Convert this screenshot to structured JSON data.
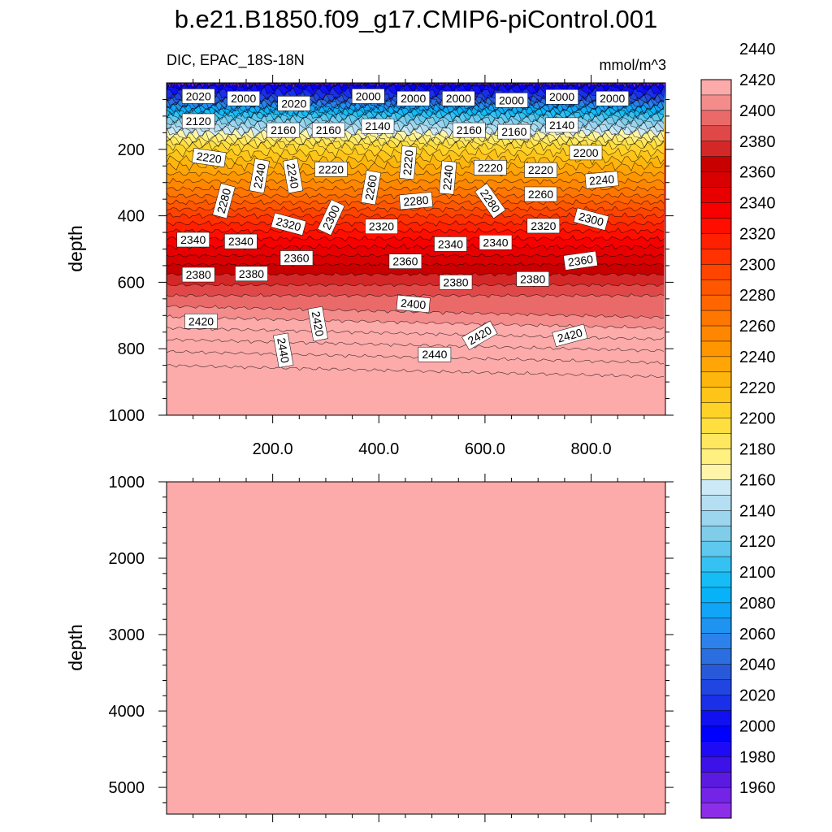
{
  "title": "b.e21.B1850.f09_g17.CMIP6-piControl.001",
  "subtitle_left": "DIC, EPAC_18S-18N",
  "subtitle_right": "mmol/m^3",
  "chart_data": {
    "type": "heatmap",
    "upper_panel": {
      "ylabel": "depth",
      "ylim": [
        1000,
        0
      ],
      "yticks": [
        200,
        400,
        600,
        800,
        1000
      ],
      "xlim": [
        0,
        940
      ],
      "xticks": [
        200,
        400,
        600,
        800
      ],
      "xtick_labels": [
        "200.0",
        "400.0",
        "600.0",
        "800.0"
      ],
      "surface_value": 1990,
      "depth_profile": [
        {
          "depth": 0,
          "value": 1990
        },
        {
          "depth": 40,
          "value": 2020
        },
        {
          "depth": 100,
          "value": 2110
        },
        {
          "depth": 150,
          "value": 2160
        },
        {
          "depth": 190,
          "value": 2200
        },
        {
          "depth": 250,
          "value": 2230
        },
        {
          "depth": 330,
          "value": 2265
        },
        {
          "depth": 400,
          "value": 2300
        },
        {
          "depth": 480,
          "value": 2335
        },
        {
          "depth": 560,
          "value": 2365
        },
        {
          "depth": 640,
          "value": 2390
        },
        {
          "depth": 720,
          "value": 2415
        },
        {
          "depth": 800,
          "value": 2438
        },
        {
          "depth": 850,
          "value": 2450
        },
        {
          "depth": 1000,
          "value": 2452
        }
      ],
      "contour_labels": [
        {
          "text": "2020",
          "x": 60,
          "depth": 40,
          "angle": 0
        },
        {
          "text": "2000",
          "x": 145,
          "depth": 47,
          "angle": 0
        },
        {
          "text": "2020",
          "x": 240,
          "depth": 62,
          "angle": 0
        },
        {
          "text": "2000",
          "x": 380,
          "depth": 40,
          "angle": 0
        },
        {
          "text": "2000",
          "x": 465,
          "depth": 47,
          "angle": 0
        },
        {
          "text": "2000",
          "x": 550,
          "depth": 47,
          "angle": 0
        },
        {
          "text": "2000",
          "x": 650,
          "depth": 52,
          "angle": 0
        },
        {
          "text": "2000",
          "x": 745,
          "depth": 42,
          "angle": 0
        },
        {
          "text": "2000",
          "x": 840,
          "depth": 47,
          "angle": 0
        },
        {
          "text": "2120",
          "x": 60,
          "depth": 115,
          "angle": 0
        },
        {
          "text": "2160",
          "x": 220,
          "depth": 142,
          "angle": 0
        },
        {
          "text": "2160",
          "x": 305,
          "depth": 142,
          "angle": 0
        },
        {
          "text": "2140",
          "x": 398,
          "depth": 130,
          "angle": 0
        },
        {
          "text": "2160",
          "x": 570,
          "depth": 142,
          "angle": 0
        },
        {
          "text": "2160",
          "x": 655,
          "depth": 147,
          "angle": 0
        },
        {
          "text": "2140",
          "x": 745,
          "depth": 127,
          "angle": 0
        },
        {
          "text": "2220",
          "x": 80,
          "depth": 225,
          "angle": 8
        },
        {
          "text": "2200",
          "x": 790,
          "depth": 210,
          "angle": 0
        },
        {
          "text": "2240",
          "x": 175,
          "depth": 280,
          "angle": -80
        },
        {
          "text": "2240",
          "x": 238,
          "depth": 280,
          "angle": 80
        },
        {
          "text": "2220",
          "x": 310,
          "depth": 260,
          "angle": 0
        },
        {
          "text": "2260",
          "x": 385,
          "depth": 315,
          "angle": -80
        },
        {
          "text": "2220",
          "x": 455,
          "depth": 240,
          "angle": -85
        },
        {
          "text": "2240",
          "x": 530,
          "depth": 285,
          "angle": -85
        },
        {
          "text": "2220",
          "x": 610,
          "depth": 255,
          "angle": 0
        },
        {
          "text": "2220",
          "x": 705,
          "depth": 262,
          "angle": 0
        },
        {
          "text": "2280",
          "x": 108,
          "depth": 355,
          "angle": -75
        },
        {
          "text": "2280",
          "x": 470,
          "depth": 355,
          "angle": -5
        },
        {
          "text": "2280",
          "x": 610,
          "depth": 355,
          "angle": 55
        },
        {
          "text": "2260",
          "x": 705,
          "depth": 335,
          "angle": 0
        },
        {
          "text": "2240",
          "x": 820,
          "depth": 292,
          "angle": -5
        },
        {
          "text": "2320",
          "x": 230,
          "depth": 425,
          "angle": 15
        },
        {
          "text": "2300",
          "x": 310,
          "depth": 405,
          "angle": -65
        },
        {
          "text": "2320",
          "x": 405,
          "depth": 432,
          "angle": 0
        },
        {
          "text": "2300",
          "x": 800,
          "depth": 410,
          "angle": 15
        },
        {
          "text": "2320",
          "x": 710,
          "depth": 430,
          "angle": 0
        },
        {
          "text": "2340",
          "x": 50,
          "depth": 472,
          "angle": 0
        },
        {
          "text": "2340",
          "x": 140,
          "depth": 477,
          "angle": 0
        },
        {
          "text": "2340",
          "x": 535,
          "depth": 485,
          "angle": 0
        },
        {
          "text": "2340",
          "x": 620,
          "depth": 480,
          "angle": 0
        },
        {
          "text": "2360",
          "x": 245,
          "depth": 527,
          "angle": 0
        },
        {
          "text": "2360",
          "x": 450,
          "depth": 537,
          "angle": 0
        },
        {
          "text": "2360",
          "x": 780,
          "depth": 535,
          "angle": -8
        },
        {
          "text": "2380",
          "x": 60,
          "depth": 577,
          "angle": 0
        },
        {
          "text": "2380",
          "x": 160,
          "depth": 574,
          "angle": 0
        },
        {
          "text": "2380",
          "x": 545,
          "depth": 600,
          "angle": 0
        },
        {
          "text": "2380",
          "x": 690,
          "depth": 590,
          "angle": 0
        },
        {
          "text": "2400",
          "x": 465,
          "depth": 665,
          "angle": 5
        },
        {
          "text": "2420",
          "x": 65,
          "depth": 717,
          "angle": 0
        },
        {
          "text": "2420",
          "x": 285,
          "depth": 725,
          "angle": 80
        },
        {
          "text": "2420",
          "x": 590,
          "depth": 760,
          "angle": -30
        },
        {
          "text": "2420",
          "x": 760,
          "depth": 760,
          "angle": -15
        },
        {
          "text": "2440",
          "x": 220,
          "depth": 805,
          "angle": 80
        },
        {
          "text": "2440",
          "x": 505,
          "depth": 817,
          "angle": 0
        }
      ]
    },
    "lower_panel": {
      "ylabel": "depth",
      "ylim": [
        1000,
        5350
      ],
      "yticks": [
        1000,
        2000,
        3000,
        4000,
        5000
      ],
      "value": 2452
    },
    "colorbar": {
      "min": 1950,
      "max": 2450,
      "step": 10,
      "tick_labels": [
        "1960",
        "1980",
        "2000",
        "2020",
        "2040",
        "2060",
        "2080",
        "2100",
        "2120",
        "2140",
        "2160",
        "2180",
        "2200",
        "2220",
        "2240",
        "2260",
        "2280",
        "2300",
        "2320",
        "2340",
        "2360",
        "2380",
        "2400",
        "2420",
        "2440"
      ],
      "colors": [
        "#8c2ee8",
        "#7324e6",
        "#5b1ae0",
        "#3d12e8",
        "#1e0af5",
        "#0000ff",
        "#1010f0",
        "#1a2fe8",
        "#2045e0",
        "#2859d8",
        "#2a6ee0",
        "#2c82ea",
        "#1e93f0",
        "#10a5f6",
        "#08b2f8",
        "#16bcf6",
        "#35c2f2",
        "#5ec8ee",
        "#80cdea",
        "#9bd5ee",
        "#b4dff2",
        "#cbe9f6",
        "#fff5a8",
        "#fff080",
        "#ffe860",
        "#ffde40",
        "#ffd228",
        "#ffc418",
        "#ffb60c",
        "#ffa606",
        "#ff9600",
        "#ff8600",
        "#ff7600",
        "#ff6600",
        "#ff5600",
        "#ff4400",
        "#ff3200",
        "#ff2000",
        "#ff0e00",
        "#f80000",
        "#e80000",
        "#d80000",
        "#c80000",
        "#d42828",
        "#e04848",
        "#ea6a6a",
        "#f48c8c",
        "#fcaaaa"
      ]
    }
  }
}
